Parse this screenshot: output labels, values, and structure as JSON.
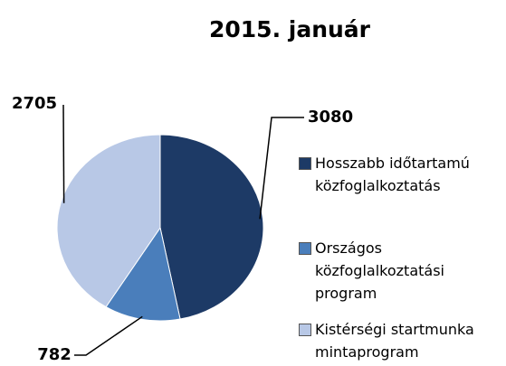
{
  "chart_data": {
    "type": "pie",
    "title": "2015. január",
    "categories": [
      "Hosszabb időtartamú közfoglalkoztatás",
      "Országos közfoglalkoztatási program",
      "Kistérségi startmunka mintaprogram"
    ],
    "values": [
      3080,
      782,
      2705
    ],
    "colors": [
      "#1d3a66",
      "#4a7ebb",
      "#b8c8e6"
    ],
    "legend": "right"
  }
}
